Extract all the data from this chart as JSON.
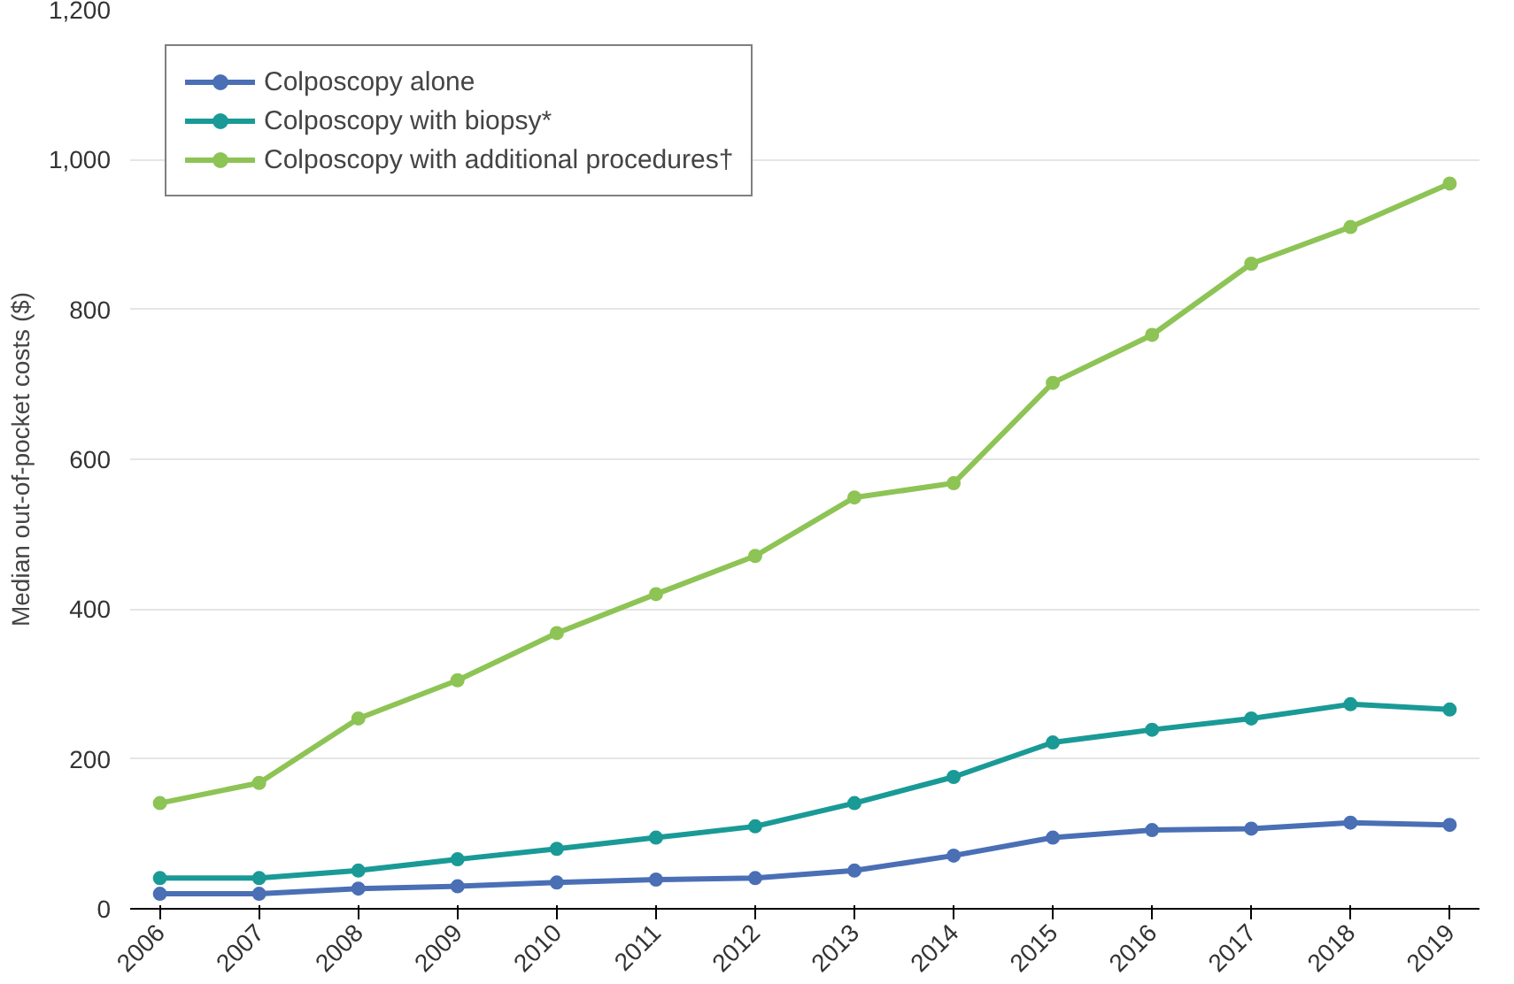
{
  "chart_data": {
    "type": "line",
    "ylabel": "Median out-of-pocket costs ($)",
    "categories": [
      "2006",
      "2007",
      "2008",
      "2009",
      "2010",
      "2011",
      "2012",
      "2013",
      "2014",
      "2015",
      "2016",
      "2017",
      "2018",
      "2019"
    ],
    "series": [
      {
        "name": "Colposcopy alone",
        "color": "#4a6fb5",
        "values": [
          20,
          20,
          27,
          30,
          35,
          39,
          41,
          51,
          71,
          95,
          105,
          107,
          115,
          112
        ]
      },
      {
        "name": "Colposcopy with biopsy*",
        "color": "#1a9a96",
        "values": [
          41,
          41,
          51,
          66,
          80,
          95,
          110,
          141,
          176,
          222,
          239,
          254,
          273,
          266
        ]
      },
      {
        "name": "Colposcopy with additional procedures†",
        "color": "#8dc455",
        "values": [
          141,
          168,
          254,
          305,
          368,
          420,
          471,
          549,
          568,
          702,
          766,
          861,
          910,
          968
        ]
      }
    ],
    "ylim": [
      0,
      1200
    ],
    "yticks": [
      0,
      {
        "value": 200,
        "label": "200"
      },
      {
        "value": 400,
        "label": "400"
      },
      {
        "value": 600,
        "label": "600"
      },
      {
        "value": 800,
        "label": "800"
      },
      {
        "value": 1000,
        "label": "1,000"
      },
      {
        "value": 1200,
        "label": "1,200"
      }
    ],
    "grid": "y",
    "legend": "top left",
    "marker": "circle",
    "line_style": "solid"
  }
}
